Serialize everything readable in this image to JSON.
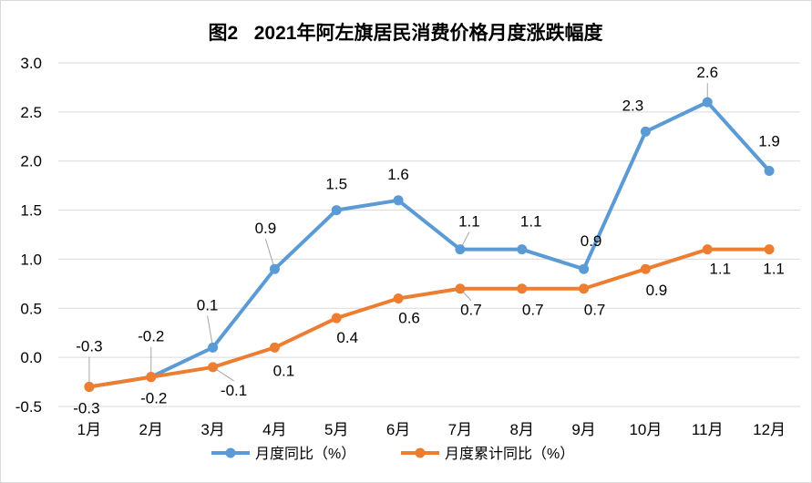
{
  "chart_data": {
    "type": "line",
    "title": "图2   2021年阿左旗居民消费价格月度涨跌幅度",
    "categories": [
      "1月",
      "2月",
      "3月",
      "4月",
      "5月",
      "6月",
      "7月",
      "8月",
      "9月",
      "10月",
      "11月",
      "12月"
    ],
    "y_ticks": [
      "3.0",
      "2.5",
      "2.0",
      "1.5",
      "1.0",
      "0.5",
      "0.0",
      "-0.5"
    ],
    "ylim": [
      -0.5,
      3.0
    ],
    "grid": "horizontal",
    "legend_position": "bottom",
    "series": [
      {
        "name": "月度同比（%）",
        "color": "#5B9BD5",
        "values": [
          -0.3,
          -0.2,
          0.1,
          0.9,
          1.5,
          1.6,
          1.1,
          1.1,
          0.9,
          2.3,
          2.6,
          1.9
        ],
        "labels": [
          "-0.3",
          "-0.2",
          "0.1",
          "0.9",
          "1.5",
          "1.6",
          "1.1",
          "1.1",
          "0.9",
          "2.3",
          "2.6",
          "1.9"
        ]
      },
      {
        "name": "月度累计同比（%）",
        "color": "#ED7D31",
        "values": [
          -0.3,
          -0.2,
          -0.1,
          0.1,
          0.4,
          0.6,
          0.7,
          0.7,
          0.7,
          0.9,
          1.1,
          1.1
        ],
        "labels": [
          "-0.3",
          "-0.2",
          "-0.1",
          "0.1",
          "0.4",
          "0.6",
          "0.7",
          "0.7",
          "0.7",
          "0.9",
          "1.1",
          "1.1"
        ]
      }
    ]
  }
}
